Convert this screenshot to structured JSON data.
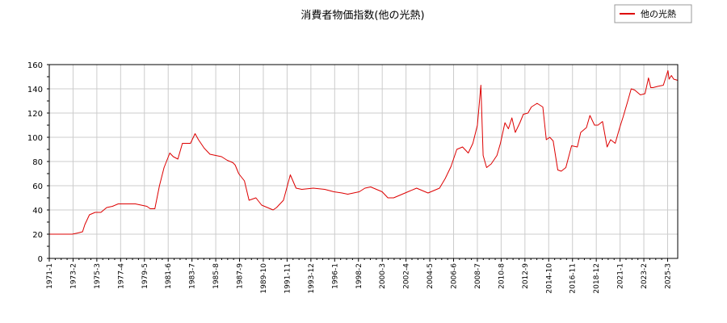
{
  "chart_data": {
    "type": "line",
    "title": "消費者物価指数(他の光熱)",
    "xlabel": "",
    "ylabel": "",
    "ylim": [
      0,
      160
    ],
    "yticks": [
      0,
      20,
      40,
      60,
      80,
      100,
      120,
      140,
      160
    ],
    "xlim": [
      1971.0,
      2025.75
    ],
    "xtick_labels": [
      "1971-1",
      "1973-2",
      "1975-3",
      "1977-4",
      "1979-5",
      "1981-6",
      "1983-7",
      "1985-8",
      "1987-9",
      "1989-10",
      "1991-11",
      "1993-12",
      "1996-1",
      "1998-2",
      "2000-3",
      "2002-4",
      "2004-5",
      "2006-6",
      "2008-7",
      "2010-8",
      "2012-9",
      "2014-10",
      "2016-11",
      "2018-12",
      "2021-1",
      "2023-2",
      "2025-3"
    ],
    "grid": true,
    "legend_position": "top-right",
    "series": [
      {
        "name": "他の光熱",
        "color": "#dd0000",
        "x": [
          1971.0,
          1972.0,
          1973.0,
          1973.5,
          1973.9,
          1974.1,
          1974.5,
          1975.0,
          1975.5,
          1976.0,
          1976.5,
          1977.0,
          1977.5,
          1978.0,
          1978.5,
          1979.0,
          1979.5,
          1979.8,
          1980.2,
          1980.6,
          1981.0,
          1981.5,
          1981.8,
          1982.2,
          1982.6,
          1983.0,
          1983.3,
          1983.7,
          1984.0,
          1984.5,
          1985.0,
          1985.5,
          1986.0,
          1986.5,
          1987.0,
          1987.2,
          1987.5,
          1988.0,
          1988.4,
          1989.0,
          1989.5,
          1990.0,
          1990.5,
          1990.8,
          1991.0,
          1991.4,
          1992.0,
          1992.5,
          1993.0,
          1994.0,
          1995.0,
          1995.8,
          1996.5,
          1997.0,
          1997.5,
          1998.0,
          1998.5,
          1999.0,
          1999.5,
          2000.0,
          2000.5,
          2001.0,
          2001.5,
          2002.0,
          2003.0,
          2004.0,
          2004.5,
          2005.0,
          2005.5,
          2006.0,
          2006.5,
          2007.0,
          2007.5,
          2007.9,
          2008.3,
          2008.6,
          2008.8,
          2009.1,
          2009.5,
          2010.0,
          2010.3,
          2010.7,
          2011.0,
          2011.3,
          2011.6,
          2012.0,
          2012.3,
          2012.7,
          2013.0,
          2013.5,
          2014.0,
          2014.3,
          2014.6,
          2014.9,
          2015.3,
          2015.6,
          2016.0,
          2016.5,
          2017.0,
          2017.3,
          2017.8,
          2018.1,
          2018.5,
          2018.8,
          2019.2,
          2019.6,
          2019.9,
          2020.3,
          2020.7,
          2021.0,
          2021.4,
          2021.7,
          2022.0,
          2022.5,
          2022.9,
          2023.2,
          2023.4,
          2023.6,
          2024.0,
          2024.5,
          2024.9,
          2025.0,
          2025.2,
          2025.4,
          2025.75
        ],
        "y": [
          20,
          20,
          20,
          21,
          22,
          28,
          36,
          38,
          38,
          42,
          43,
          45,
          45,
          45,
          45,
          44,
          43,
          41,
          41,
          60,
          75,
          87,
          84,
          82,
          95,
          95,
          95,
          103,
          98,
          91,
          86,
          85,
          84,
          81,
          79,
          77,
          70,
          64,
          48,
          50,
          44,
          42,
          40,
          42,
          44,
          48,
          69,
          58,
          57,
          58,
          57,
          55,
          54,
          53,
          54,
          55,
          58,
          59,
          57,
          55,
          50,
          50,
          52,
          54,
          58,
          54,
          56,
          58,
          66,
          76,
          90,
          92,
          87,
          95,
          110,
          143,
          85,
          75,
          78,
          85,
          95,
          112,
          107,
          116,
          104,
          112,
          119,
          120,
          125,
          128,
          125,
          98,
          100,
          97,
          73,
          72,
          75,
          93,
          92,
          104,
          108,
          118,
          110,
          110,
          113,
          92,
          98,
          95,
          108,
          117,
          130,
          140,
          139,
          135,
          136,
          149,
          141,
          141,
          142,
          143,
          155,
          148,
          151,
          148,
          147
        ]
      }
    ]
  }
}
